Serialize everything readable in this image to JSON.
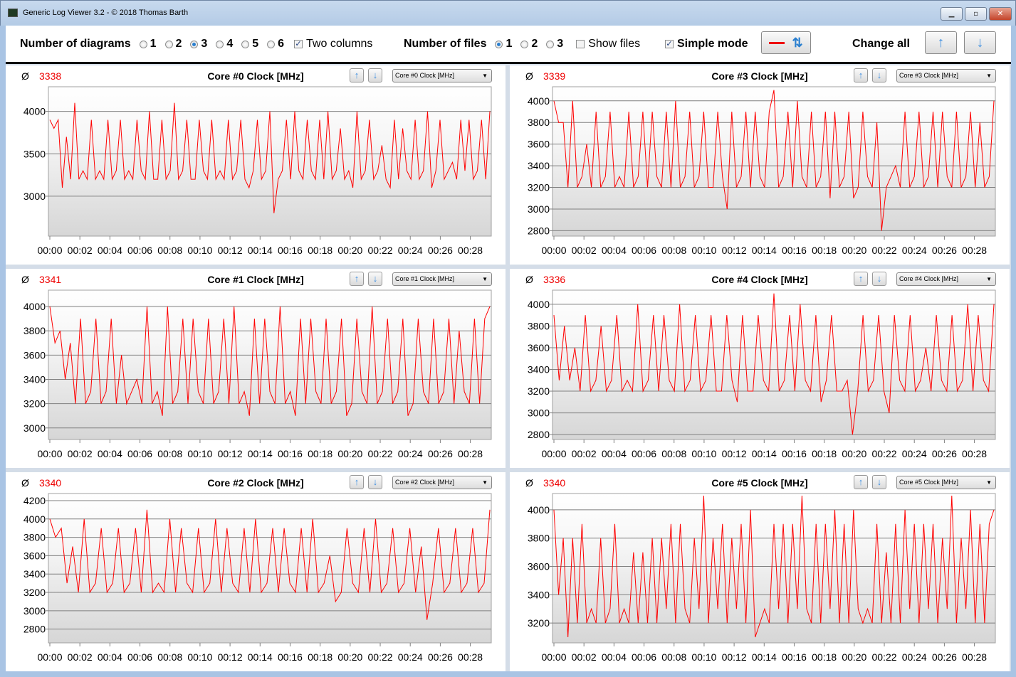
{
  "window": {
    "title": "Generic Log Viewer 3.2 - © 2018 Thomas Barth",
    "controls": [
      "minimize",
      "maximize",
      "close"
    ]
  },
  "toolbar": {
    "diagrams_label": "Number of diagrams",
    "diagram_options": [
      "1",
      "2",
      "3",
      "4",
      "5",
      "6"
    ],
    "diagrams_selected": "3",
    "two_columns_label": "Two columns",
    "two_columns_checked": true,
    "files_label": "Number of files",
    "file_options": [
      "1",
      "2",
      "3"
    ],
    "files_selected": "1",
    "show_files_label": "Show files",
    "show_files_checked": false,
    "simple_mode_label": "Simple mode",
    "simple_mode_checked": true,
    "change_all_label": "Change all",
    "accent": "#ff0000"
  },
  "chart_data": [
    {
      "type": "line",
      "title": "Core #0 Clock [MHz]",
      "avg_symbol": "Ø",
      "avg": "3338",
      "dropdown": "Core #0 Clock [MHz]",
      "ylim": [
        2530,
        4290
      ],
      "yticks": [
        3000,
        3500,
        4000
      ],
      "xticks": [
        "00:00",
        "00:02",
        "00:04",
        "00:06",
        "00:08",
        "00:10",
        "00:12",
        "00:14",
        "00:16",
        "00:18",
        "00:20",
        "00:22",
        "00:24",
        "00:26",
        "00:28"
      ],
      "x_range_min": [
        0,
        29.3
      ],
      "color": "#ff0000",
      "grid": true,
      "values": [
        3900,
        3800,
        3900,
        3100,
        3700,
        3200,
        4100,
        3200,
        3300,
        3200,
        3900,
        3200,
        3300,
        3200,
        3900,
        3200,
        3300,
        3900,
        3200,
        3300,
        3200,
        3900,
        3300,
        3200,
        4000,
        3200,
        3200,
        3900,
        3200,
        3300,
        4100,
        3200,
        3300,
        3900,
        3200,
        3200,
        3900,
        3300,
        3200,
        3900,
        3200,
        3300,
        3200,
        3900,
        3200,
        3300,
        3900,
        3200,
        3100,
        3300,
        3900,
        3200,
        3300,
        4000,
        2800,
        3200,
        3300,
        3900,
        3200,
        4000,
        3300,
        3200,
        3900,
        3300,
        3200,
        3900,
        3200,
        4000,
        3200,
        3300,
        3800,
        3200,
        3300,
        3100,
        4000,
        3200,
        3300,
        3900,
        3200,
        3300,
        3600,
        3200,
        3100,
        3900,
        3200,
        3800,
        3300,
        3200,
        3900,
        3200,
        3300,
        4000,
        3100,
        3300,
        3900,
        3200,
        3300,
        3400,
        3200,
        3900,
        3300,
        3900,
        3200,
        3300,
        3900,
        3200,
        4000
      ]
    },
    {
      "type": "line",
      "title": "Core #3 Clock [MHz]",
      "avg_symbol": "Ø",
      "avg": "3339",
      "dropdown": "Core #3 Clock [MHz]",
      "ylim": [
        2750,
        4130
      ],
      "yticks": [
        2800,
        3000,
        3200,
        3400,
        3600,
        3800,
        4000
      ],
      "xticks": [
        "00:00",
        "00:02",
        "00:04",
        "00:06",
        "00:08",
        "00:10",
        "00:12",
        "00:14",
        "00:16",
        "00:18",
        "00:20",
        "00:22",
        "00:24",
        "00:26",
        "00:28"
      ],
      "x_range_min": [
        0,
        29.3
      ],
      "color": "#ff0000",
      "grid": true,
      "values": [
        4000,
        3800,
        3800,
        3200,
        4000,
        3200,
        3300,
        3600,
        3200,
        3900,
        3200,
        3300,
        3900,
        3200,
        3300,
        3200,
        3900,
        3200,
        3300,
        3900,
        3200,
        3900,
        3300,
        3200,
        3900,
        3200,
        4000,
        3200,
        3300,
        3900,
        3200,
        3300,
        3900,
        3200,
        3200,
        3900,
        3300,
        3000,
        3900,
        3200,
        3300,
        3900,
        3200,
        3900,
        3300,
        3200,
        3900,
        4100,
        3200,
        3300,
        3900,
        3200,
        4000,
        3300,
        3200,
        3900,
        3200,
        3300,
        3900,
        3100,
        3900,
        3200,
        3300,
        3900,
        3100,
        3200,
        3900,
        3300,
        3200,
        3800,
        2800,
        3200,
        3300,
        3400,
        3200,
        3900,
        3200,
        3300,
        3900,
        3200,
        3300,
        3900,
        3200,
        3900,
        3300,
        3200,
        3900,
        3200,
        3300,
        3900,
        3200,
        3800,
        3200,
        3300,
        4000
      ]
    },
    {
      "type": "line",
      "title": "Core #1 Clock [MHz]",
      "avg_symbol": "Ø",
      "avg": "3341",
      "dropdown": "Core #1 Clock [MHz]",
      "ylim": [
        2905,
        4135
      ],
      "yticks": [
        3000,
        3200,
        3400,
        3600,
        3800,
        4000
      ],
      "xticks": [
        "00:00",
        "00:02",
        "00:04",
        "00:06",
        "00:08",
        "00:10",
        "00:12",
        "00:14",
        "00:16",
        "00:18",
        "00:20",
        "00:22",
        "00:24",
        "00:26",
        "00:28"
      ],
      "x_range_min": [
        0,
        29.3
      ],
      "color": "#ff0000",
      "grid": true,
      "values": [
        4000,
        3700,
        3800,
        3400,
        3700,
        3200,
        3900,
        3200,
        3300,
        3900,
        3200,
        3300,
        3900,
        3200,
        3600,
        3200,
        3300,
        3400,
        3200,
        4000,
        3200,
        3300,
        3100,
        4000,
        3200,
        3300,
        3900,
        3200,
        3900,
        3300,
        3200,
        3900,
        3200,
        3300,
        3900,
        3200,
        4000,
        3200,
        3300,
        3100,
        3900,
        3200,
        3900,
        3300,
        3200,
        4000,
        3200,
        3300,
        3100,
        3900,
        3200,
        3900,
        3300,
        3200,
        3900,
        3200,
        3300,
        3900,
        3100,
        3200,
        3900,
        3300,
        3200,
        4000,
        3200,
        3300,
        3900,
        3200,
        3300,
        3900,
        3100,
        3200,
        3900,
        3300,
        3200,
        3900,
        3200,
        3300,
        3900,
        3200,
        3800,
        3300,
        3200,
        3900,
        3200,
        3900,
        4000
      ]
    },
    {
      "type": "line",
      "title": "Core #4 Clock [MHz]",
      "avg_symbol": "Ø",
      "avg": "3336",
      "dropdown": "Core #4 Clock [MHz]",
      "ylim": [
        2755,
        4130
      ],
      "yticks": [
        2800,
        3000,
        3200,
        3400,
        3600,
        3800,
        4000
      ],
      "xticks": [
        "00:00",
        "00:02",
        "00:04",
        "00:06",
        "00:08",
        "00:10",
        "00:12",
        "00:14",
        "00:16",
        "00:18",
        "00:20",
        "00:22",
        "00:24",
        "00:26",
        "00:28"
      ],
      "x_range_min": [
        0,
        29.3
      ],
      "color": "#ff0000",
      "grid": true,
      "values": [
        3900,
        3300,
        3800,
        3300,
        3600,
        3200,
        3900,
        3200,
        3300,
        3800,
        3200,
        3300,
        3900,
        3200,
        3300,
        3200,
        4000,
        3200,
        3300,
        3900,
        3200,
        3900,
        3300,
        3200,
        4000,
        3200,
        3300,
        3900,
        3200,
        3300,
        3900,
        3200,
        3200,
        3900,
        3300,
        3100,
        3900,
        3200,
        3200,
        3900,
        3300,
        3200,
        4100,
        3200,
        3300,
        3900,
        3200,
        4000,
        3300,
        3200,
        3900,
        3100,
        3300,
        3900,
        3200,
        3200,
        3300,
        2800,
        3200,
        3900,
        3200,
        3300,
        3900,
        3200,
        3000,
        3900,
        3300,
        3200,
        3900,
        3200,
        3300,
        3600,
        3200,
        3900,
        3300,
        3200,
        3900,
        3200,
        3300,
        4000,
        3200,
        3900,
        3300,
        3200,
        4000
      ]
    },
    {
      "type": "line",
      "title": "Core #2 Clock [MHz]",
      "avg_symbol": "Ø",
      "avg": "3340",
      "dropdown": "Core #2 Clock [MHz]",
      "ylim": [
        2650,
        4277
      ],
      "yticks": [
        2800,
        3000,
        3200,
        3400,
        3600,
        3800,
        4000,
        4200
      ],
      "xticks": [
        "00:00",
        "00:02",
        "00:04",
        "00:06",
        "00:08",
        "00:10",
        "00:12",
        "00:14",
        "00:16",
        "00:18",
        "00:20",
        "00:22",
        "00:24",
        "00:26",
        "00:28"
      ],
      "x_range_min": [
        0,
        29.3
      ],
      "color": "#ff0000",
      "grid": true,
      "values": [
        4000,
        3800,
        3900,
        3300,
        3700,
        3200,
        4000,
        3200,
        3300,
        3900,
        3200,
        3300,
        3900,
        3200,
        3300,
        3900,
        3200,
        4100,
        3200,
        3300,
        3200,
        4000,
        3200,
        3900,
        3300,
        3200,
        3900,
        3200,
        3300,
        4000,
        3200,
        3900,
        3300,
        3200,
        3900,
        3200,
        4000,
        3200,
        3300,
        3900,
        3200,
        3900,
        3300,
        3200,
        3900,
        3200,
        4000,
        3200,
        3300,
        3600,
        3100,
        3200,
        3900,
        3300,
        3200,
        3900,
        3200,
        4000,
        3200,
        3300,
        3900,
        3200,
        3300,
        3900,
        3200,
        3700,
        2900,
        3300,
        3900,
        3200,
        3300,
        3900,
        3200,
        3300,
        3900,
        3200,
        3300,
        4100
      ]
    },
    {
      "type": "line",
      "title": "Core #5 Clock [MHz]",
      "avg_symbol": "Ø",
      "avg": "3340",
      "dropdown": "Core #5 Clock [MHz]",
      "ylim": [
        3060,
        4115
      ],
      "yticks": [
        3200,
        3400,
        3600,
        3800,
        4000
      ],
      "xticks": [
        "00:00",
        "00:02",
        "00:04",
        "00:06",
        "00:08",
        "00:10",
        "00:12",
        "00:14",
        "00:16",
        "00:18",
        "00:20",
        "00:22",
        "00:24",
        "00:26",
        "00:28"
      ],
      "x_range_min": [
        0,
        29.3
      ],
      "color": "#ff0000",
      "grid": true,
      "values": [
        4000,
        3400,
        3800,
        3100,
        3800,
        3200,
        3900,
        3200,
        3300,
        3200,
        3800,
        3200,
        3300,
        3900,
        3200,
        3300,
        3200,
        3700,
        3200,
        3700,
        3200,
        3800,
        3200,
        3800,
        3300,
        3900,
        3200,
        3900,
        3300,
        3200,
        3800,
        3300,
        4100,
        3200,
        3800,
        3300,
        3900,
        3200,
        3800,
        3300,
        3900,
        3200,
        4000,
        3100,
        3200,
        3300,
        3200,
        3900,
        3300,
        3900,
        3200,
        3900,
        3300,
        4100,
        3300,
        3200,
        3900,
        3200,
        3900,
        3300,
        4000,
        3200,
        3900,
        3200,
        4000,
        3300,
        3200,
        3300,
        3200,
        3900,
        3200,
        3700,
        3200,
        3900,
        3200,
        4000,
        3300,
        3900,
        3200,
        3900,
        3300,
        3900,
        3200,
        3800,
        3300,
        4100,
        3200,
        3800,
        3300,
        4000,
        3200,
        3900,
        3200,
        3900,
        4000
      ]
    }
  ]
}
